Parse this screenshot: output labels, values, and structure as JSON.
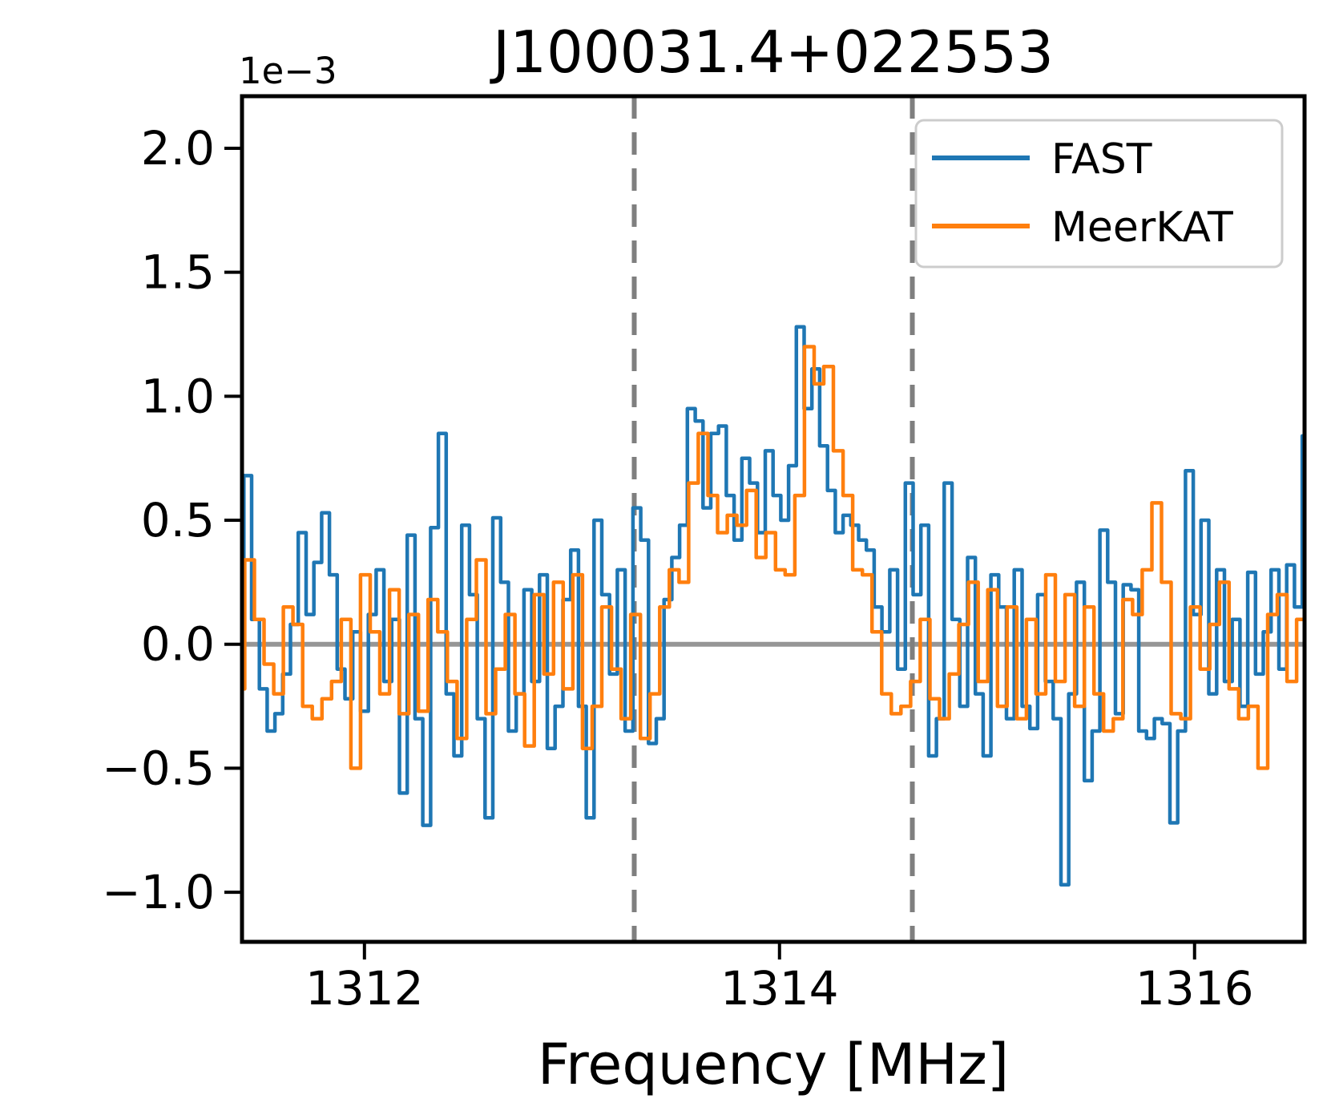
{
  "figure": {
    "title": "J100031.4+022553",
    "offset_text": "1e−3",
    "xlabel": "Frequency [MHz]",
    "background_color": "#ffffff",
    "spine_color": "#000000"
  },
  "legend": {
    "position": "upper right",
    "entries": [
      {
        "label": "FAST",
        "color": "#1f77b4"
      },
      {
        "label": "MeerKAT",
        "color": "#ff7f0e"
      }
    ]
  },
  "chart_data": {
    "type": "line",
    "drawstyle": "steps-mid",
    "title": "J100031.4+022553",
    "xlabel": "Frequency [MHz]",
    "ylabel": "",
    "y_offset_factor": "1e-3",
    "grid": false,
    "legend_position": "upper right",
    "xlim": [
      1311.41,
      1316.53
    ],
    "ylim_1e3": [
      -1.2,
      2.21
    ],
    "xticks": [
      1312,
      1314,
      1316
    ],
    "xtick_labels": [
      "1312",
      "1314",
      "1316"
    ],
    "yticks_1e3": [
      2.0,
      1.5,
      1.0,
      0.5,
      0.0,
      -0.5,
      -1.0
    ],
    "ytick_labels": [
      "2.0",
      "1.5",
      "1.0",
      "0.5",
      "0.0",
      "−0.5",
      "−1.0"
    ],
    "zero_line": {
      "y_1e3": 0.0,
      "color": "#969696"
    },
    "vlines": {
      "x": [
        1313.3,
        1314.64
      ],
      "style": "dashed",
      "color": "#7f7f7f"
    },
    "series": [
      {
        "name": "FAST",
        "color": "#1f77b4",
        "x_start": 1311.4,
        "x_step": 0.0375,
        "values_1e3": [
          0.15,
          0.68,
          0.1,
          -0.18,
          -0.35,
          -0.28,
          -0.12,
          0.08,
          0.45,
          0.12,
          0.33,
          0.53,
          0.28,
          -0.1,
          -0.22,
          0.05,
          -0.27,
          0.12,
          0.3,
          -0.15,
          0.1,
          -0.6,
          0.44,
          -0.3,
          -0.73,
          0.47,
          0.85,
          -0.2,
          -0.45,
          0.48,
          0.2,
          -0.3,
          -0.7,
          0.51,
          0.25,
          -0.35,
          -0.2,
          0.22,
          -0.15,
          0.28,
          -0.42,
          -0.25,
          0.18,
          0.38,
          -0.25,
          -0.7,
          0.5,
          0.2,
          -0.12,
          0.3,
          -0.35,
          0.55,
          0.42,
          -0.4,
          -0.3,
          0.18,
          0.35,
          0.48,
          0.95,
          0.9,
          0.55,
          0.85,
          0.88,
          0.6,
          0.42,
          0.75,
          0.65,
          0.45,
          0.78,
          0.6,
          0.5,
          0.72,
          1.28,
          0.95,
          1.11,
          0.8,
          0.62,
          0.45,
          0.52,
          0.48,
          0.42,
          0.38,
          0.15,
          0.05,
          0.3,
          -0.1,
          0.65,
          0.2,
          0.48,
          -0.45,
          -0.3,
          0.65,
          0.1,
          -0.25,
          0.35,
          -0.2,
          -0.45,
          0.28,
          0.15,
          -0.3,
          0.3,
          -0.25,
          -0.34,
          0.2,
          -0.15,
          -0.3,
          -0.97,
          -0.2,
          0.25,
          -0.55,
          -0.35,
          0.46,
          0.25,
          -0.28,
          0.24,
          0.22,
          -0.35,
          -0.38,
          -0.3,
          -0.32,
          -0.72,
          -0.35,
          0.7,
          0.12,
          0.5,
          -0.2,
          0.3,
          -0.15,
          0.1,
          -0.25,
          0.29,
          -0.12,
          0.05,
          0.3,
          -0.1,
          0.32,
          0.15,
          0.84,
          0.25,
          0.12
        ]
      },
      {
        "name": "MeerKAT",
        "color": "#ff7f0e",
        "x_start": 1311.4,
        "x_step": 0.0465,
        "values_1e3": [
          -0.18,
          0.34,
          0.1,
          -0.08,
          -0.2,
          0.15,
          0.08,
          -0.25,
          -0.3,
          -0.22,
          -0.15,
          0.1,
          -0.5,
          0.28,
          0.05,
          -0.2,
          0.22,
          -0.28,
          0.12,
          -0.27,
          0.18,
          0.05,
          -0.15,
          -0.38,
          0.1,
          0.34,
          -0.28,
          -0.1,
          0.12,
          -0.2,
          -0.41,
          0.2,
          -0.12,
          0.25,
          -0.18,
          0.28,
          -0.42,
          -0.25,
          0.15,
          -0.1,
          -0.3,
          0.12,
          -0.38,
          -0.2,
          0.15,
          0.3,
          0.25,
          0.65,
          0.85,
          0.6,
          0.45,
          0.52,
          0.48,
          0.62,
          0.35,
          0.45,
          0.3,
          0.28,
          0.6,
          1.2,
          1.05,
          1.12,
          0.78,
          0.6,
          0.3,
          0.28,
          0.05,
          -0.2,
          -0.28,
          -0.25,
          -0.15,
          0.1,
          -0.22,
          -0.3,
          -0.12,
          0.08,
          0.25,
          -0.15,
          0.22,
          -0.25,
          0.15,
          -0.3,
          0.1,
          -0.2,
          0.28,
          -0.15,
          0.2,
          -0.25,
          0.15,
          -0.2,
          -0.35,
          -0.3,
          0.18,
          0.12,
          0.3,
          0.57,
          0.25,
          -0.28,
          -0.3,
          0.15,
          -0.1,
          0.08,
          0.25,
          -0.18,
          -0.3,
          -0.25,
          -0.5,
          0.12,
          0.2,
          -0.15,
          0.1,
          0.22,
          0.15,
          0.18
        ]
      }
    ]
  }
}
